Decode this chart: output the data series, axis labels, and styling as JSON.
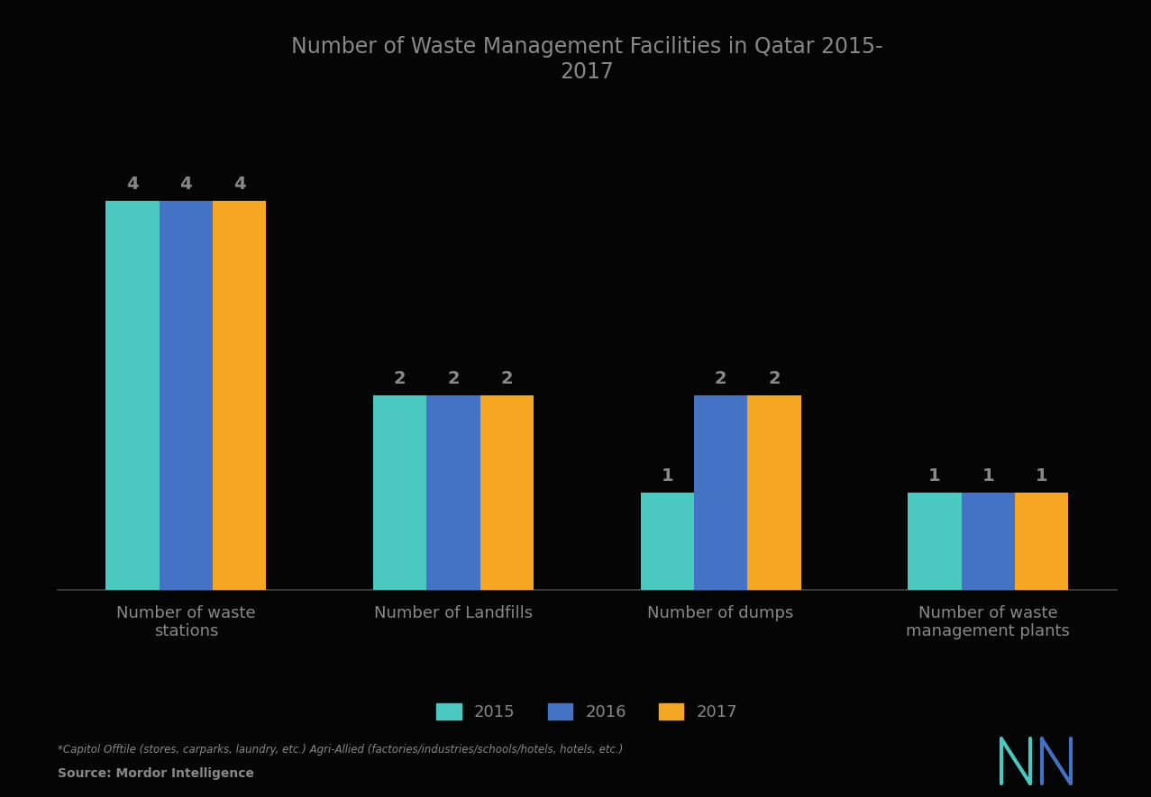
{
  "title": "Number of Waste Management Facilities in Qatar 2015-\n2017",
  "categories": [
    "Number of waste\nstations",
    "Number of Landfills",
    "Number of dumps",
    "Number of waste\nmanagement plants"
  ],
  "series": [
    "2015",
    "2016",
    "2017"
  ],
  "values": [
    [
      4,
      4,
      4
    ],
    [
      2,
      2,
      2
    ],
    [
      1,
      2,
      2
    ],
    [
      1,
      1,
      1
    ]
  ],
  "colors": [
    "#4BC8C0",
    "#4472C4",
    "#F5A623"
  ],
  "bar_width": 0.2,
  "ylim": [
    0,
    5
  ],
  "title_fontsize": 17,
  "label_fontsize": 13,
  "bar_label_fontsize": 14,
  "legend_fontsize": 13,
  "footnote": "*Capitol Offtile (stores, carparks, laundry, etc.) Agri-Allied (factories/industries/schools/hotels, hotels, etc.)",
  "source": "Source: Mordor Intelligence",
  "background_color": "#050505",
  "text_color": "#888888",
  "title_color": "#888888"
}
